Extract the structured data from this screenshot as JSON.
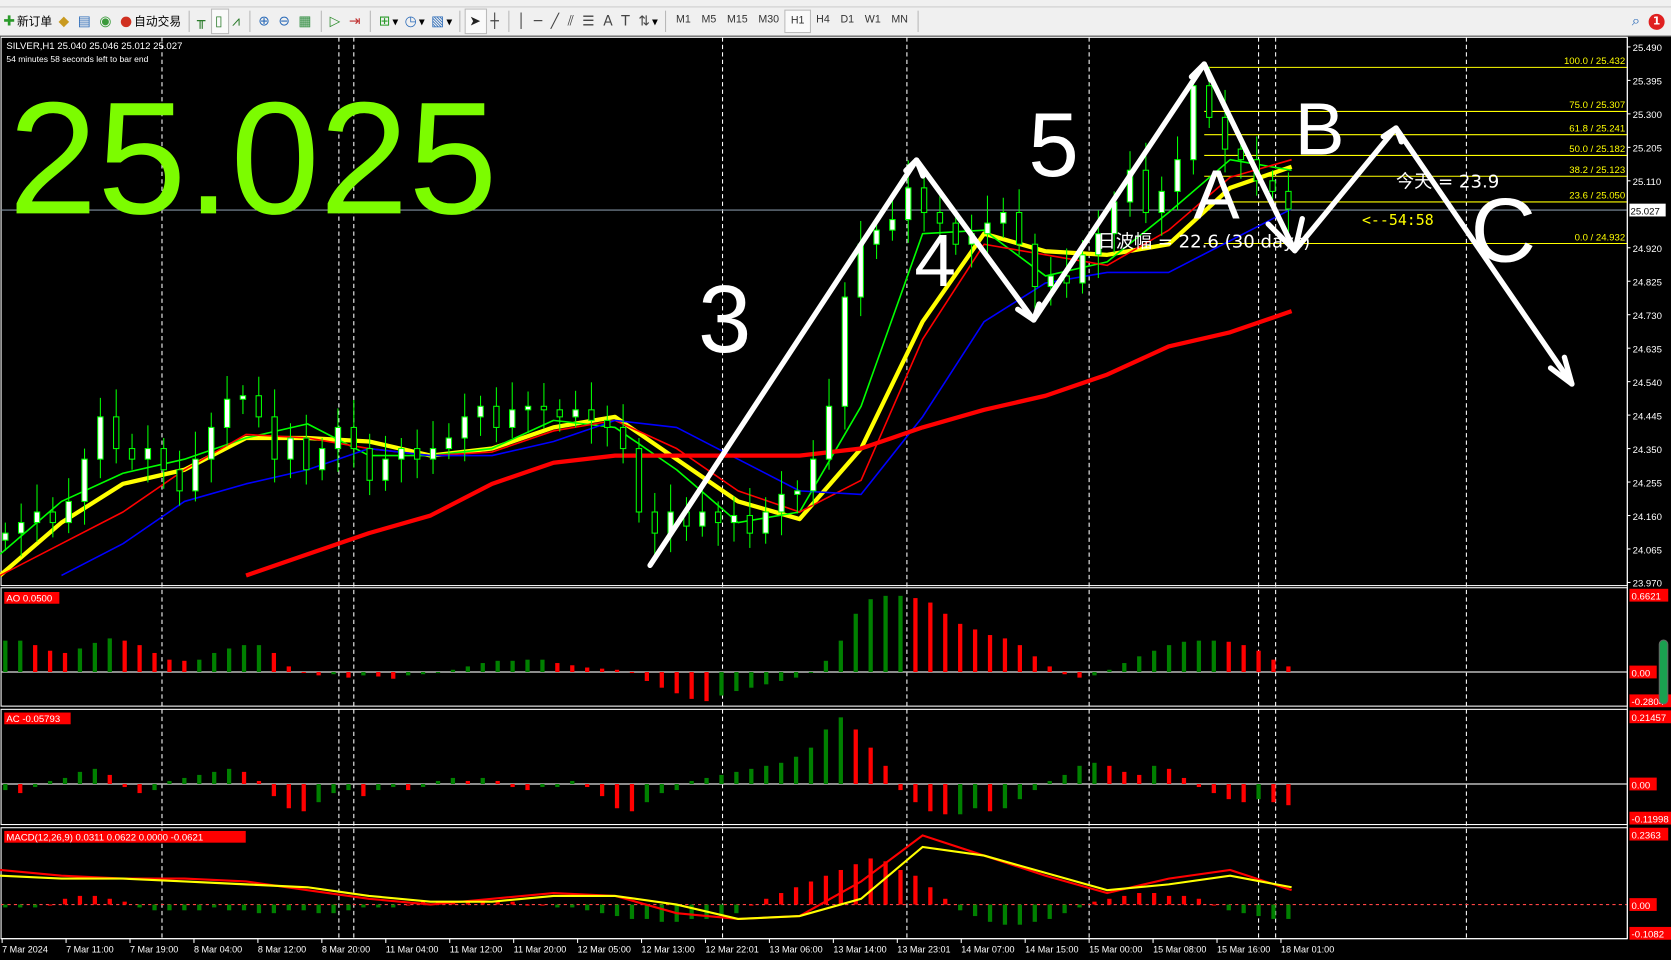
{
  "toolbar": {
    "new_order": "新订单",
    "auto_trading": "自动交易",
    "icons": [
      "new-order-icon",
      "market-watch-icon",
      "navigator-icon",
      "signal-icon",
      "auto-trading-icon",
      "bar-chart-icon",
      "candlestick-icon",
      "line-chart-icon",
      "zoom-in-icon",
      "zoom-out-icon",
      "tile-windows-icon",
      "auto-scroll-icon",
      "chart-shift-icon",
      "indicators-icon",
      "periods-icon",
      "templates-icon",
      "cursor-icon",
      "crosshair-icon",
      "vertical-line-icon",
      "horizontal-line-icon",
      "trendline-icon",
      "channel-icon",
      "fibonacci-icon",
      "text-icon",
      "text-label-icon",
      "arrows-icon"
    ],
    "timeframes": [
      "M1",
      "M5",
      "M15",
      "M30",
      "H1",
      "H4",
      "D1",
      "W1",
      "MN"
    ],
    "active_timeframe": "H1",
    "notification_count": "1"
  },
  "chart": {
    "symbol_line": "SILVER,H1  25.040 25.046 25.012 25.027",
    "bar_timer": "54 minutes 58 seconds left to bar end",
    "big_price": "25.025",
    "big_price_color": "#7CFC00",
    "current_price": "25.027",
    "range_text": "日波幅 = 22.6 (30 days)",
    "today_text": "今天 = 23.9",
    "countdown": "<--54:58",
    "wave_labels": [
      "3",
      "4",
      "5",
      "A",
      "B",
      "C"
    ]
  },
  "chart_data": [
    {
      "type": "candlestick",
      "name": "SILVER,H1",
      "ylim": [
        23.97,
        25.49
      ],
      "price_ticks": [
        "25.490",
        "25.395",
        "25.300",
        "25.205",
        "25.110",
        "25.027",
        "24.920",
        "24.825",
        "24.730",
        "24.635",
        "24.540",
        "24.445",
        "24.350",
        "24.255",
        "24.160",
        "24.065",
        "23.970"
      ],
      "time_ticks": [
        "7 Mar 2024",
        "7 Mar 11:00",
        "7 Mar 19:00",
        "8 Mar 04:00",
        "8 Mar 12:00",
        "8 Mar 20:00",
        "11 Mar 04:00",
        "11 Mar 12:00",
        "11 Mar 20:00",
        "12 Mar 05:00",
        "12 Mar 13:00",
        "12 Mar 22:01",
        "13 Mar 06:00",
        "13 Mar 14:00",
        "13 Mar 23:01",
        "14 Mar 07:00",
        "14 Mar 15:00",
        "15 Mar 00:00",
        "15 Mar 08:00",
        "15 Mar 16:00",
        "18 Mar 01:00"
      ],
      "closes": [
        24.11,
        24.14,
        24.17,
        24.14,
        24.2,
        24.32,
        24.44,
        24.35,
        24.32,
        24.35,
        24.29,
        24.23,
        24.32,
        24.41,
        24.49,
        24.5,
        24.44,
        24.32,
        24.38,
        24.29,
        24.35,
        24.41,
        24.35,
        24.26,
        24.32,
        24.35,
        24.32,
        24.35,
        24.38,
        24.44,
        24.47,
        24.41,
        24.46,
        24.47,
        24.46,
        24.44,
        24.46,
        24.43,
        24.41,
        24.35,
        24.17,
        24.11,
        24.17,
        24.13,
        24.17,
        24.14,
        24.16,
        24.11,
        24.17,
        24.22,
        24.23,
        24.32,
        24.47,
        24.78,
        24.93,
        24.97,
        25.0,
        25.09,
        25.02,
        24.99,
        24.93,
        24.96,
        24.99,
        25.02,
        24.93,
        24.81,
        24.84,
        24.82,
        24.9,
        24.96,
        25.05,
        25.14,
        25.02,
        25.08,
        25.17,
        25.38,
        25.29,
        25.2,
        25.17,
        25.11,
        25.08,
        25.03
      ],
      "moving_averages": [
        {
          "color": "#ffff00",
          "values": [
            23.99,
            24.14,
            24.25,
            24.29,
            24.38,
            24.38,
            24.37,
            24.33,
            24.35,
            24.41,
            24.44,
            24.32,
            24.2,
            24.15,
            24.35,
            24.71,
            24.96,
            24.91,
            24.9,
            24.93,
            25.09,
            25.15
          ]
        },
        {
          "color": "#00ff00",
          "values": [
            24.05,
            24.2,
            24.28,
            24.32,
            24.38,
            24.42,
            24.33,
            24.33,
            24.35,
            24.43,
            24.41,
            24.29,
            24.14,
            24.17,
            24.47,
            24.96,
            24.97,
            24.84,
            24.88,
            25.02,
            25.17,
            25.14
          ]
        },
        {
          "color": "#ff0000",
          "values": [
            23.99,
            24.08,
            24.17,
            24.29,
            24.39,
            24.38,
            24.35,
            24.33,
            24.34,
            24.4,
            24.43,
            24.35,
            24.23,
            24.17,
            24.26,
            24.66,
            24.93,
            24.9,
            24.87,
            24.97,
            25.12,
            25.17
          ]
        },
        {
          "color": "#0000ff",
          "values": [
            null,
            23.99,
            24.08,
            24.2,
            24.25,
            24.29,
            24.35,
            24.33,
            24.33,
            24.37,
            24.43,
            24.41,
            24.32,
            24.23,
            24.22,
            24.44,
            24.71,
            24.82,
            24.85,
            24.85,
            24.94,
            25.03
          ]
        },
        {
          "color": "#ff0000",
          "thick": true,
          "values": [
            null,
            null,
            null,
            null,
            23.99,
            24.05,
            24.11,
            24.16,
            24.25,
            24.31,
            24.33,
            24.33,
            24.33,
            24.33,
            24.35,
            24.41,
            24.46,
            24.5,
            24.56,
            24.64,
            24.68,
            24.74
          ]
        }
      ],
      "fibonacci": [
        {
          "label": "100.0  /  25.432",
          "price": 25.432
        },
        {
          "label": "75.0  /  25.307",
          "price": 25.307
        },
        {
          "label": "61.8  /  25.241",
          "price": 25.241
        },
        {
          "label": "50.0  /  25.182",
          "price": 25.182
        },
        {
          "label": "38.2  /  25.123",
          "price": 25.123
        },
        {
          "label": "23.6  /  25.050",
          "price": 25.05
        },
        {
          "label": "0.0  /  24.932",
          "price": 24.932
        }
      ]
    },
    {
      "type": "bar",
      "name": "AO",
      "label": "AO 0.0500",
      "ylim": [
        -0.2804,
        0.6621
      ],
      "ticks": [
        "0.6621",
        "0.00",
        "-0.2804"
      ],
      "values": [
        0.28,
        0.28,
        0.24,
        0.19,
        0.17,
        0.21,
        0.26,
        0.3,
        0.28,
        0.24,
        0.17,
        0.11,
        0.1,
        0.11,
        0.17,
        0.21,
        0.24,
        0.24,
        0.17,
        0.05,
        0,
        -0.03,
        -0.02,
        -0.05,
        -0.03,
        -0.04,
        -0.06,
        -0.03,
        -0.02,
        -0.01,
        0.02,
        0.05,
        0.08,
        0.1,
        0.1,
        0.11,
        0.11,
        0.08,
        0.06,
        0.04,
        0.03,
        0.02,
        0,
        -0.08,
        -0.14,
        -0.19,
        -0.24,
        -0.26,
        -0.21,
        -0.17,
        -0.14,
        -0.11,
        -0.08,
        -0.05,
        0,
        0.1,
        0.28,
        0.52,
        0.65,
        0.68,
        0.68,
        0.66,
        0.62,
        0.52,
        0.43,
        0.38,
        0.33,
        0.3,
        0.24,
        0.14,
        0.05,
        -0.02,
        -0.05,
        -0.03,
        0.02,
        0.08,
        0.14,
        0.19,
        0.24,
        0.27,
        0.28,
        0.28,
        0.27,
        0.24,
        0.19,
        0.11,
        0.05
      ]
    },
    {
      "type": "bar",
      "name": "AC",
      "label": "AC -0.05793",
      "ylim": [
        -0.11998,
        0.21457
      ],
      "ticks": [
        "0.21457",
        "0.00",
        "-0.11998"
      ],
      "values": [
        -0.02,
        -0.03,
        -0.01,
        0.01,
        0.02,
        0.04,
        0.05,
        0.03,
        -0.01,
        -0.03,
        -0.02,
        0.01,
        0.02,
        0.03,
        0.04,
        0.05,
        0.04,
        0.01,
        -0.04,
        -0.08,
        -0.09,
        -0.06,
        -0.03,
        -0.02,
        -0.04,
        -0.02,
        -0.01,
        -0.02,
        -0.01,
        0.01,
        0.02,
        0.01,
        0.02,
        0.01,
        -0.01,
        -0.02,
        -0.01,
        -0.01,
        0.01,
        -0.01,
        -0.04,
        -0.08,
        -0.09,
        -0.06,
        -0.03,
        -0.02,
        0.01,
        0.02,
        0.03,
        0.04,
        0.05,
        0.06,
        0.07,
        0.09,
        0.12,
        0.18,
        0.22,
        0.18,
        0.12,
        0.06,
        -0.02,
        -0.06,
        -0.09,
        -0.1,
        -0.1,
        -0.08,
        -0.09,
        -0.08,
        -0.05,
        -0.02,
        0.01,
        0.03,
        0.06,
        0.07,
        0.06,
        0.04,
        0.03,
        0.06,
        0.05,
        0.02,
        -0.01,
        -0.03,
        -0.05,
        -0.06,
        -0.05,
        -0.06,
        -0.07
      ]
    },
    {
      "type": "bar+line",
      "name": "MACD",
      "label": "MACD(12,26,9) 0.0311 0.0622 0.0000 -0.0621",
      "ylim": [
        -0.1082,
        0.2363
      ],
      "ticks": [
        "0.2363",
        "0.00",
        "-0.1082"
      ],
      "histogram": [
        -0.01,
        -0.01,
        -0.01,
        0,
        0.02,
        0.03,
        0.03,
        0.02,
        0.01,
        -0.01,
        -0.02,
        -0.02,
        -0.02,
        -0.02,
        -0.01,
        -0.02,
        -0.02,
        -0.03,
        -0.03,
        -0.02,
        -0.02,
        -0.03,
        -0.03,
        -0.02,
        -0.01,
        -0.01,
        -0.01,
        0,
        0.01,
        0.01,
        0.01,
        0.01,
        0.01,
        0.01,
        0.01,
        0,
        0,
        -0.01,
        -0.01,
        -0.02,
        -0.03,
        -0.04,
        -0.05,
        -0.05,
        -0.06,
        -0.06,
        -0.05,
        -0.05,
        -0.04,
        -0.03,
        0,
        0.02,
        0.04,
        0.06,
        0.08,
        0.1,
        0.12,
        0.14,
        0.16,
        0.15,
        0.12,
        0.1,
        0.06,
        0.02,
        -0.02,
        -0.04,
        -0.06,
        -0.07,
        -0.07,
        -0.06,
        -0.05,
        -0.03,
        -0.01,
        0.01,
        0.02,
        0.03,
        0.04,
        0.04,
        0.03,
        0.03,
        0.02,
        0,
        -0.02,
        -0.03,
        -0.04,
        -0.05,
        -0.05
      ],
      "lines": [
        {
          "color": "#ff0000",
          "values": [
            0.12,
            0.1,
            0.09,
            0.09,
            0.08,
            0.05,
            0.02,
            0,
            0.02,
            0.04,
            0.03,
            -0.03,
            -0.05,
            -0.04,
            0.08,
            0.24,
            0.17,
            0.1,
            0.04,
            0.09,
            0.12,
            0.05
          ]
        },
        {
          "color": "#ffff00",
          "values": [
            0.1,
            0.09,
            0.09,
            0.08,
            0.07,
            0.06,
            0.03,
            0.01,
            0.01,
            0.03,
            0.03,
            0,
            -0.05,
            -0.04,
            0.02,
            0.2,
            0.17,
            0.11,
            0.05,
            0.07,
            0.1,
            0.06
          ]
        }
      ]
    }
  ]
}
